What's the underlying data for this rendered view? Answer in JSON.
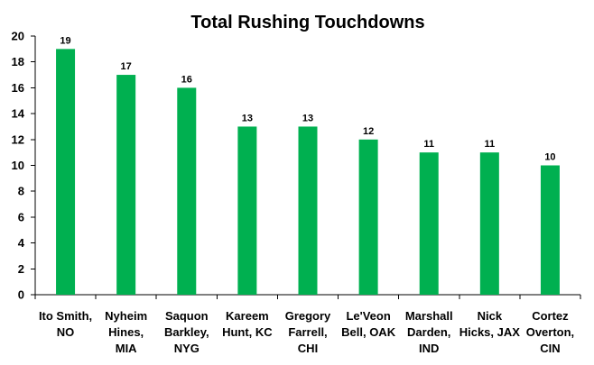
{
  "chart_data": {
    "type": "bar",
    "title": "Total Rushing Touchdowns",
    "xlabel": "",
    "ylabel": "",
    "ylim": [
      0,
      20
    ],
    "ytick_step": 2,
    "yticks": [
      "0",
      "2",
      "4",
      "6",
      "8",
      "10",
      "12",
      "14",
      "16",
      "18",
      "20"
    ],
    "categories": [
      [
        "Ito Smith,",
        "NO"
      ],
      [
        "Nyheim",
        "Hines,",
        "MIA"
      ],
      [
        "Saquon",
        "Barkley,",
        "NYG"
      ],
      [
        "Kareem",
        "Hunt, KC"
      ],
      [
        "Gregory",
        "Farrell,",
        "CHI"
      ],
      [
        "Le'Veon",
        "Bell, OAK"
      ],
      [
        "Marshall",
        "Darden,",
        "IND"
      ],
      [
        "Nick",
        "Hicks, JAX"
      ],
      [
        "Cortez",
        "Overton,",
        "CIN"
      ]
    ],
    "values": [
      19,
      17,
      16,
      13,
      13,
      12,
      11,
      11,
      10
    ],
    "data_labels": [
      "19",
      "17",
      "16",
      "13",
      "13",
      "12",
      "11",
      "11",
      "10"
    ],
    "grid": false,
    "legend": "none",
    "colors": {
      "bar": "#00b050",
      "axis": "#000000",
      "text": "#000000"
    }
  }
}
